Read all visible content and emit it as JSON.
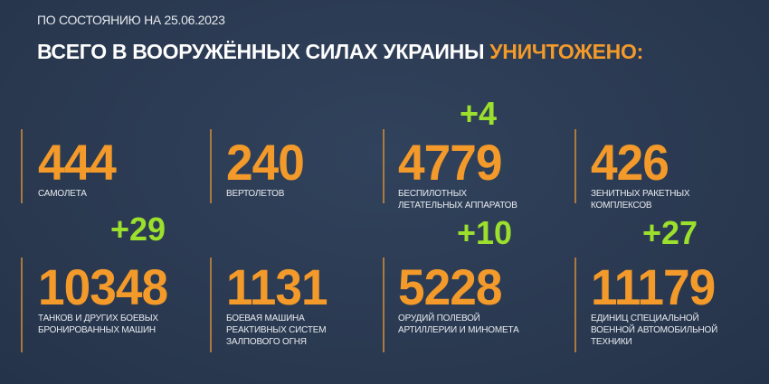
{
  "header": {
    "date_line": "ПО СОСТОЯНИЮ НА 25.06.2023",
    "title_main": "ВСЕГО В ВООРУЖЁННЫХ СИЛАХ УКРАИНЫ",
    "title_highlight": "УНИЧТОЖЕНО:"
  },
  "colors": {
    "background": "#2b3b54",
    "number": "#f39a2a",
    "delta": "#9be02c",
    "text": "#ffffff"
  },
  "stats": [
    {
      "value": "444",
      "label_lines": [
        "САМОЛЕТА"
      ],
      "delta": ""
    },
    {
      "value": "240",
      "label_lines": [
        "ВЕРТОЛЕТОВ"
      ],
      "delta": ""
    },
    {
      "value": "4779",
      "label_lines": [
        "БЕСПИЛОТНЫХ",
        "ЛЕТАТЕЛЬНЫХ АППАРАТОВ"
      ],
      "delta": "+4"
    },
    {
      "value": "426",
      "label_lines": [
        "ЗЕНИТНЫХ РАКЕТНЫХ",
        "КОМПЛЕКСОВ"
      ],
      "delta": ""
    },
    {
      "value": "10348",
      "label_lines": [
        "ТАНКОВ И ДРУГИХ БОЕВЫХ",
        "БРОНИРОВАННЫХ МАШИН"
      ],
      "delta": "+29"
    },
    {
      "value": "1131",
      "label_lines": [
        "БОЕВАЯ МАШИНА",
        "РЕАКТИВНЫХ СИСТЕМ",
        "ЗАЛПОВОГО ОГНЯ"
      ],
      "delta": ""
    },
    {
      "value": "5228",
      "label_lines": [
        "ОРУДИЙ ПОЛЕВОЙ",
        "АРТИЛЛЕРИИ И МИНОМЕТА"
      ],
      "delta": "+10"
    },
    {
      "value": "11179",
      "label_lines": [
        "ЕДИНИЦ СПЕЦИАЛЬНОЙ",
        "ВОЕННОЙ АВТОМОБИЛЬНОЙ",
        "ТЕХНИКИ"
      ],
      "delta": "+27"
    }
  ]
}
